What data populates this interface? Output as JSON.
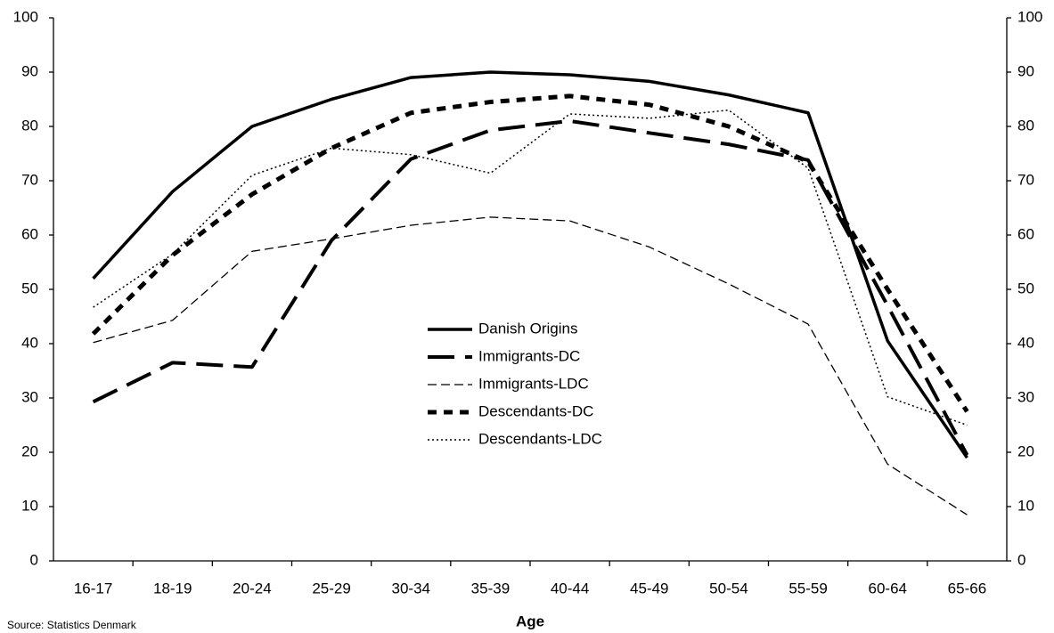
{
  "chart_data": {
    "type": "line",
    "x_label": "Age",
    "source": "Source: Statistics Denmark",
    "categories": [
      "16-17",
      "18-19",
      "20-24",
      "25-29",
      "30-34",
      "35-39",
      "40-44",
      "45-49",
      "50-54",
      "55-59",
      "60-64",
      "65-66"
    ],
    "series": [
      {
        "name": "Danish Origins",
        "color": "#000000",
        "values": [
          52,
          68,
          80,
          85,
          89,
          90,
          89.5,
          88.3,
          85.8,
          82.5,
          40.5,
          19
        ]
      },
      {
        "name": "Immigrants-DC",
        "color": "#000000",
        "values": [
          29.3,
          36.5,
          35.7,
          59,
          74,
          79.3,
          81,
          78.8,
          76.7,
          73.8,
          47,
          19.5
        ]
      },
      {
        "name": "Immigrants-LDC",
        "color": "#000000",
        "values": [
          40.2,
          44.3,
          57,
          59.3,
          61.8,
          63.3,
          62.6,
          57.8,
          51,
          43.6,
          17.8,
          8.5
        ]
      },
      {
        "name": "Descendants-DC",
        "color": "#000000",
        "values": [
          41.8,
          56.3,
          67.5,
          76,
          82.5,
          84.5,
          85.6,
          84,
          80,
          73.5,
          50,
          27.5
        ]
      },
      {
        "name": "Descendants-LDC",
        "color": "#000000",
        "values": [
          46.7,
          56.5,
          71,
          76,
          74.8,
          71.4,
          82.3,
          81.5,
          83,
          72.3,
          30.2,
          25
        ]
      }
    ],
    "ylim": [
      0,
      100
    ],
    "yticks": [
      0,
      10,
      20,
      30,
      40,
      50,
      60,
      70,
      80,
      90,
      100
    ],
    "y2lim": [
      0,
      100
    ],
    "y2ticks": [
      0,
      10,
      20,
      30,
      40,
      50,
      60,
      70,
      80,
      90,
      100
    ],
    "grid": false
  }
}
